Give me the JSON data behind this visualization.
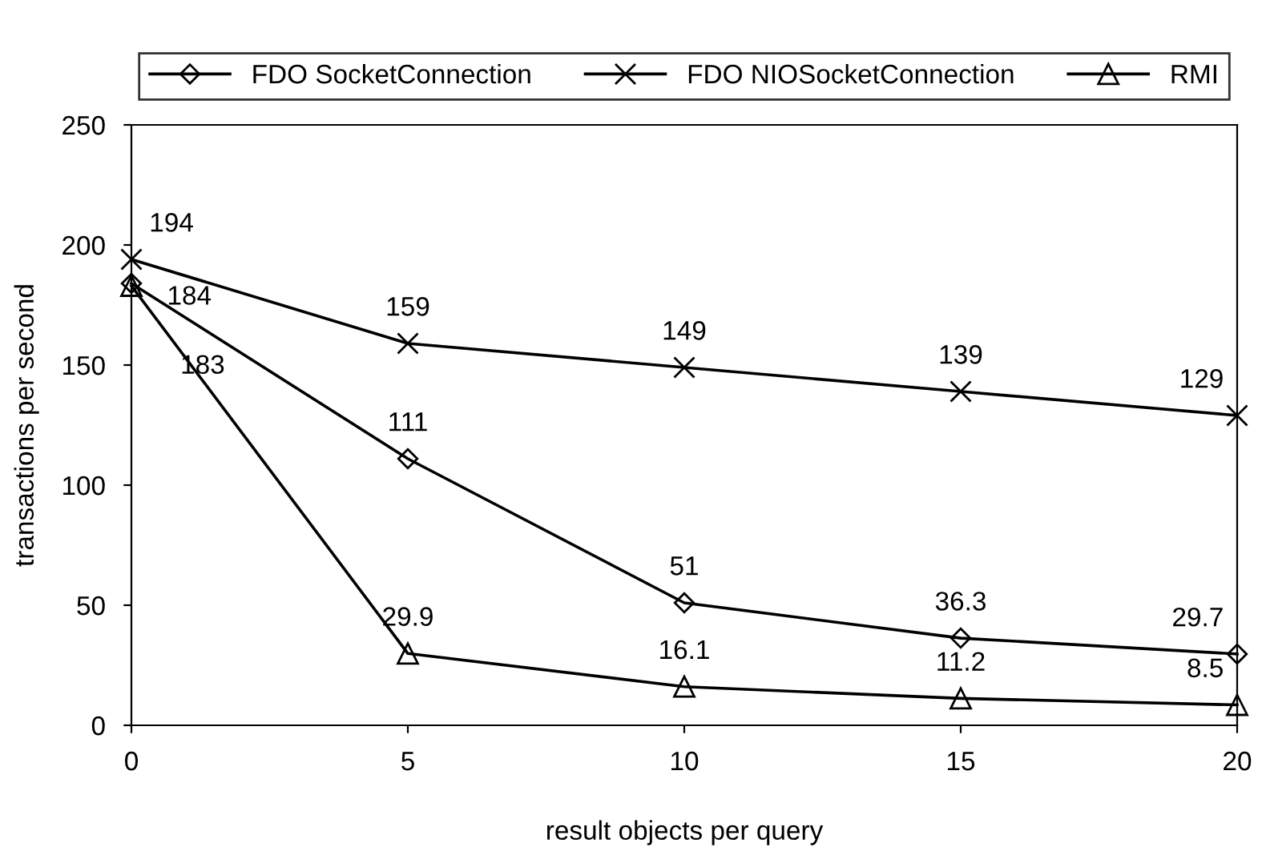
{
  "chart_data": {
    "type": "line",
    "xlabel": "result objects per query",
    "ylabel": "transactions per second",
    "x": [
      0,
      5,
      10,
      15,
      20
    ],
    "xlim": [
      0,
      20
    ],
    "xticks": [
      0,
      5,
      10,
      15,
      20
    ],
    "ylim": [
      0,
      250
    ],
    "yticks": [
      0,
      50,
      100,
      150,
      200,
      250
    ],
    "grid": false,
    "legend": "top",
    "data_labels": true,
    "line_style": "solid",
    "series": [
      {
        "name": "FDO SocketConnection",
        "color": "#000000",
        "marker": "diamond",
        "values": [
          184,
          111,
          51,
          36.3,
          29.7
        ]
      },
      {
        "name": "FDO NIOSocketConnection",
        "color": "#000000",
        "marker": "cross",
        "values": [
          194,
          159,
          149,
          139,
          129
        ]
      },
      {
        "name": "RMI",
        "color": "#000000",
        "marker": "triangle",
        "values": [
          183,
          29.9,
          16.1,
          11.2,
          8.5
        ]
      }
    ]
  }
}
